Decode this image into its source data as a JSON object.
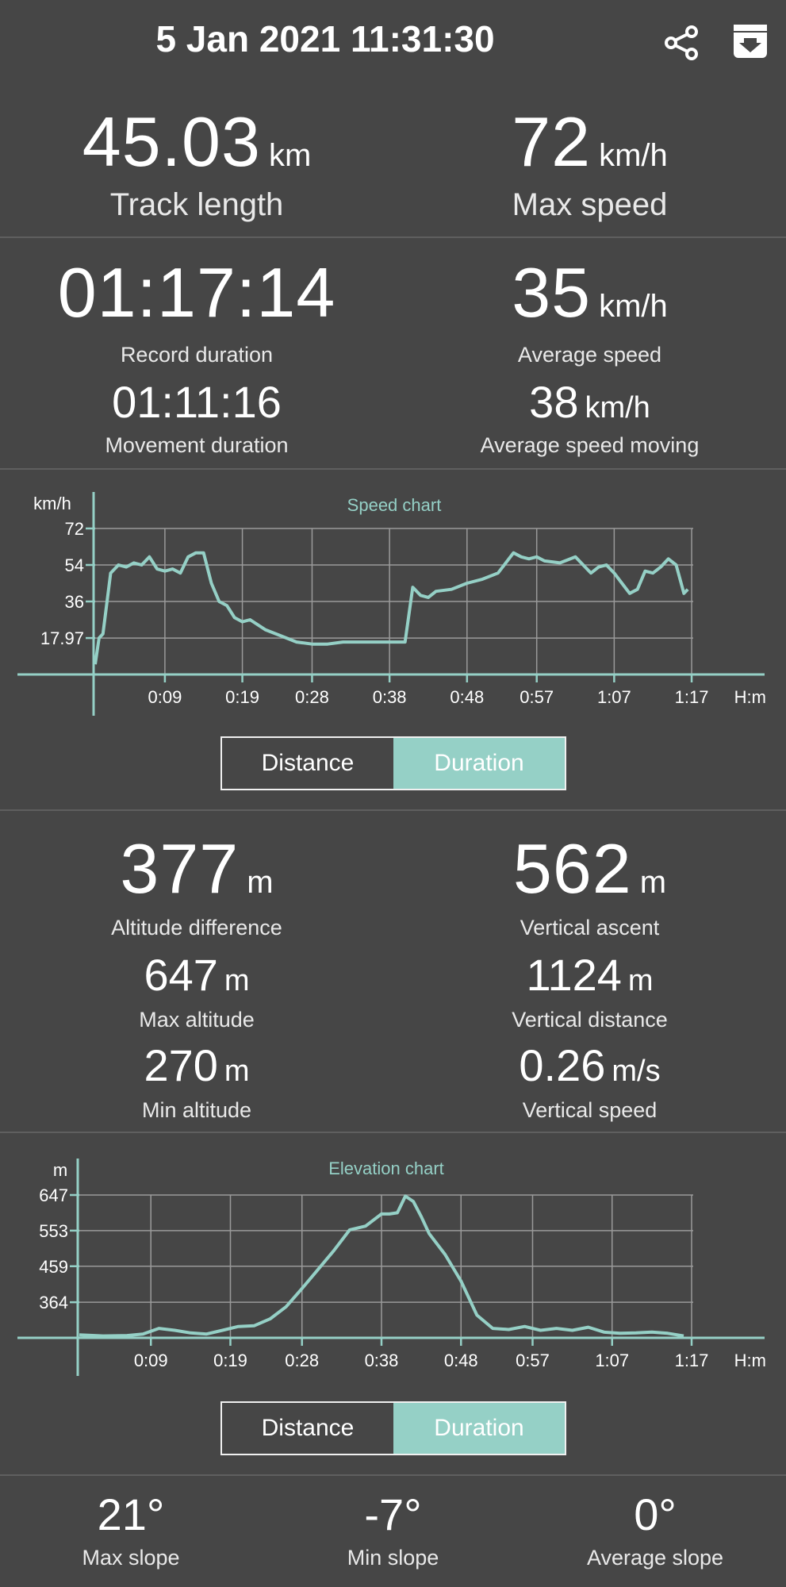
{
  "header": {
    "title": "5 Jan 2021 11:31:30",
    "share_icon": "share-icon",
    "export_icon": "download-icon"
  },
  "stats_top": {
    "track_length": {
      "value": "45.03",
      "unit": "km",
      "label": "Track length"
    },
    "max_speed": {
      "value": "72",
      "unit": "km/h",
      "label": "Max speed"
    },
    "record_duration": {
      "value": "01:17:14",
      "label": "Record duration"
    },
    "average_speed": {
      "value": "35",
      "unit": "km/h",
      "label": "Average speed"
    },
    "movement_duration": {
      "value": "01:11:16",
      "label": "Movement duration"
    },
    "average_speed_moving": {
      "value": "38",
      "unit": "km/h",
      "label": "Average speed moving"
    }
  },
  "speed_chart": {
    "toggle": {
      "left": "Distance",
      "right": "Duration",
      "selected": "Duration"
    },
    "color": "#95d0c6"
  },
  "stats_alt": {
    "altitude_difference": {
      "value": "377",
      "unit": "m",
      "label": "Altitude difference"
    },
    "vertical_ascent": {
      "value": "562",
      "unit": "m",
      "label": "Vertical ascent"
    },
    "max_altitude": {
      "value": "647",
      "unit": "m",
      "label": "Max altitude"
    },
    "vertical_distance": {
      "value": "1124",
      "unit": "m",
      "label": "Vertical distance"
    },
    "min_altitude": {
      "value": "270",
      "unit": "m",
      "label": "Min altitude"
    },
    "vertical_speed": {
      "value": "0.26",
      "unit": "m/s",
      "label": "Vertical speed"
    }
  },
  "elevation_chart": {
    "toggle": {
      "left": "Distance",
      "right": "Duration",
      "selected": "Duration"
    }
  },
  "slopes": {
    "max": {
      "value": "21°",
      "label": "Max slope"
    },
    "min": {
      "value": "-7°",
      "label": "Min slope"
    },
    "avg": {
      "value": "0°",
      "label": "Average slope"
    }
  },
  "chart_data": [
    {
      "type": "line",
      "title": "Speed chart",
      "ylabel": "km/h",
      "xlabel": "H:m",
      "x_ticks": [
        "0:09",
        "0:19",
        "0:28",
        "0:38",
        "0:48",
        "0:57",
        "1:07",
        "1:17"
      ],
      "y_ticks": [
        "17.97",
        "36",
        "54",
        "72"
      ],
      "ylim": [
        0,
        72
      ],
      "xlim": [
        0,
        77.2
      ],
      "grid": true,
      "series": [
        {
          "x": [
            0,
            0.5,
            1,
            2,
            3,
            4,
            5,
            6,
            7,
            8,
            9,
            10,
            11,
            12,
            13,
            14,
            15,
            16,
            17,
            18,
            19,
            20,
            22,
            24,
            26,
            28,
            30,
            32,
            33,
            34,
            36,
            38,
            40,
            41,
            42,
            43,
            44,
            46,
            48,
            50,
            52,
            54,
            55,
            56,
            57,
            58,
            60,
            62,
            64,
            65,
            66,
            67,
            68,
            69,
            70,
            71,
            72,
            73,
            74,
            75,
            76,
            76.5
          ],
          "y": [
            5,
            18,
            20,
            50,
            54,
            53,
            55,
            54,
            58,
            52,
            51,
            52,
            50,
            58,
            60,
            60,
            45,
            36,
            34,
            28,
            26,
            27,
            22,
            19,
            16,
            15,
            15,
            16,
            16,
            16,
            16,
            16,
            16,
            43,
            39,
            38,
            41,
            42,
            45,
            47,
            50,
            60,
            58,
            57,
            58,
            56,
            55,
            58,
            50,
            53,
            54,
            50,
            45,
            40,
            42,
            51,
            50,
            53,
            57,
            54,
            40,
            42
          ]
        }
      ]
    },
    {
      "type": "line",
      "title": "Elevation chart",
      "ylabel": "m",
      "xlabel": "H:m",
      "x_ticks": [
        "0:09",
        "0:19",
        "0:28",
        "0:38",
        "0:48",
        "0:57",
        "1:07",
        "1:17"
      ],
      "y_ticks": [
        "364",
        "459",
        "553",
        "647"
      ],
      "ylim": [
        270,
        647
      ],
      "xlim": [
        0,
        77.2
      ],
      "grid": true,
      "series": [
        {
          "x": [
            0,
            3,
            6,
            8,
            10,
            12,
            14,
            16,
            18,
            20,
            22,
            24,
            26,
            28,
            30,
            32,
            34,
            36,
            38,
            39,
            40,
            41,
            42,
            43,
            44,
            46,
            48,
            50,
            52,
            54,
            56,
            58,
            60,
            62,
            64,
            66,
            68,
            70,
            72,
            74,
            76
          ],
          "y": [
            278,
            275,
            276,
            280,
            295,
            290,
            283,
            280,
            290,
            300,
            302,
            320,
            352,
            400,
            450,
            500,
            555,
            565,
            597,
            597,
            600,
            644,
            630,
            590,
            545,
            490,
            420,
            330,
            295,
            292,
            300,
            290,
            295,
            290,
            298,
            285,
            282,
            283,
            285,
            282,
            275
          ]
        }
      ]
    }
  ]
}
